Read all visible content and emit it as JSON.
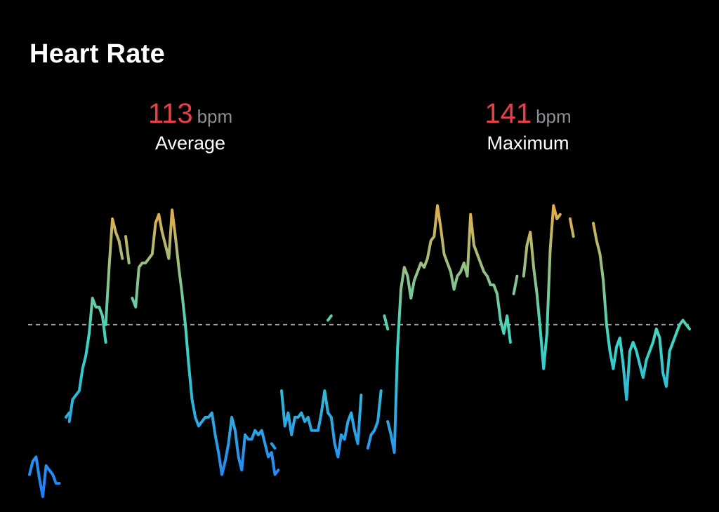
{
  "title": "Heart Rate",
  "colors": {
    "background": "#000000",
    "stat_value": "#e8404a",
    "stat_unit": "#8e8e93",
    "gradient_high": "#ffa637",
    "gradient_mid": "#39d7c5",
    "gradient_low": "#1f7cff",
    "average_line": "#a0a0a0"
  },
  "stats": {
    "average": {
      "value": "113",
      "unit": "bpm",
      "label": "Average"
    },
    "maximum": {
      "value": "141",
      "unit": "bpm",
      "label": "Maximum"
    }
  },
  "chart_data": {
    "type": "line",
    "ylim": [
      74,
      144
    ],
    "average": 113,
    "x_count": 200,
    "series": [
      {
        "segments": [
          [
            [
              0,
              79
            ],
            [
              1,
              82
            ],
            [
              2,
              83
            ],
            [
              3,
              78
            ],
            [
              4,
              74
            ],
            [
              5,
              81
            ],
            [
              6,
              80
            ],
            [
              7,
              79
            ],
            [
              8,
              77
            ],
            [
              9,
              77
            ]
          ],
          [
            [
              11,
              92
            ],
            [
              12,
              93
            ]
          ],
          [
            [
              12,
              91
            ],
            [
              13,
              96
            ],
            [
              14,
              97
            ],
            [
              15,
              98
            ],
            [
              16,
              103
            ],
            [
              17,
              106
            ],
            [
              18,
              111
            ],
            [
              19,
              119
            ],
            [
              20,
              117
            ],
            [
              21,
              117
            ],
            [
              22,
              115
            ],
            [
              23,
              109
            ]
          ],
          [
            [
              23,
              113
            ],
            [
              24,
              126
            ],
            [
              25,
              137
            ],
            [
              26,
              134
            ],
            [
              27,
              132
            ],
            [
              28,
              128
            ]
          ],
          [
            [
              29,
              133
            ],
            [
              30,
              127
            ]
          ],
          [
            [
              31,
              119
            ],
            [
              32,
              117
            ],
            [
              33,
              126
            ],
            [
              34,
              127
            ],
            [
              35,
              127
            ],
            [
              36,
              128
            ],
            [
              37,
              129
            ],
            [
              38,
              136
            ],
            [
              39,
              138
            ],
            [
              40,
              134
            ],
            [
              41,
              131
            ],
            [
              42,
              128
            ],
            [
              43,
              139
            ],
            [
              44,
              133
            ],
            [
              45,
              126
            ],
            [
              46,
              120
            ],
            [
              47,
              113
            ],
            [
              48,
              104
            ],
            [
              49,
              96
            ],
            [
              50,
              92
            ],
            [
              51,
              90
            ],
            [
              52,
              91
            ],
            [
              53,
              92
            ],
            [
              54,
              92
            ],
            [
              55,
              93
            ],
            [
              56,
              88
            ],
            [
              57,
              84
            ],
            [
              58,
              79
            ],
            [
              59,
              82
            ],
            [
              60,
              86
            ],
            [
              61,
              92
            ],
            [
              62,
              89
            ],
            [
              63,
              83
            ],
            [
              64,
              80
            ],
            [
              65,
              88
            ],
            [
              66,
              87
            ],
            [
              67,
              87
            ],
            [
              68,
              89
            ],
            [
              69,
              88
            ],
            [
              70,
              89
            ],
            [
              71,
              86
            ],
            [
              72,
              83
            ],
            [
              73,
              84
            ],
            [
              74,
              79
            ],
            [
              75,
              80
            ]
          ],
          [
            [
              73,
              86
            ],
            [
              74,
              85
            ]
          ],
          [
            [
              76,
              98
            ],
            [
              77,
              90
            ],
            [
              78,
              93
            ],
            [
              79,
              88
            ],
            [
              80,
              92
            ],
            [
              81,
              92
            ],
            [
              82,
              93
            ],
            [
              83,
              91
            ],
            [
              84,
              92
            ],
            [
              85,
              89
            ],
            [
              86,
              89
            ],
            [
              87,
              89
            ],
            [
              88,
              93
            ],
            [
              89,
              98
            ],
            [
              90,
              93
            ],
            [
              91,
              92
            ],
            [
              92,
              86
            ],
            [
              93,
              83
            ],
            [
              94,
              88
            ],
            [
              95,
              87
            ],
            [
              96,
              91
            ],
            [
              97,
              93
            ],
            [
              98,
              89
            ],
            [
              99,
              86
            ],
            [
              100,
              97
            ]
          ],
          [
            [
              90,
              114
            ],
            [
              91,
              115
            ]
          ],
          [
            [
              102,
              85
            ],
            [
              103,
              88
            ],
            [
              104,
              89
            ],
            [
              105,
              91
            ],
            [
              106,
              98
            ]
          ],
          [
            [
              107,
              115
            ],
            [
              108,
              112
            ]
          ],
          [
            [
              108,
              91
            ],
            [
              109,
              88
            ],
            [
              110,
              84
            ],
            [
              111,
              108
            ],
            [
              112,
              121
            ],
            [
              113,
              126
            ],
            [
              114,
              124
            ],
            [
              115,
              119
            ],
            [
              116,
              123
            ],
            [
              117,
              125
            ],
            [
              118,
              127
            ],
            [
              119,
              126
            ],
            [
              120,
              128
            ],
            [
              121,
              132
            ],
            [
              122,
              133
            ],
            [
              123,
              140
            ],
            [
              124,
              135
            ],
            [
              125,
              129
            ],
            [
              126,
              127
            ],
            [
              127,
              125
            ],
            [
              128,
              121
            ],
            [
              129,
              124
            ],
            [
              130,
              125
            ],
            [
              131,
              127
            ],
            [
              132,
              124
            ],
            [
              133,
              138
            ],
            [
              134,
              131
            ],
            [
              135,
              129
            ],
            [
              136,
              127
            ],
            [
              137,
              125
            ],
            [
              138,
              124
            ],
            [
              139,
              122
            ],
            [
              140,
              122
            ],
            [
              141,
              120
            ],
            [
              142,
              114
            ],
            [
              143,
              111
            ],
            [
              144,
              115
            ],
            [
              145,
              109
            ]
          ],
          [
            [
              146,
              120
            ],
            [
              147,
              124
            ]
          ],
          [
            [
              149,
              124
            ],
            [
              150,
              131
            ],
            [
              151,
              134
            ],
            [
              152,
              126
            ],
            [
              153,
              120
            ],
            [
              154,
              112
            ],
            [
              155,
              103
            ],
            [
              156,
              111
            ],
            [
              157,
              130
            ],
            [
              158,
              140
            ],
            [
              159,
              137
            ],
            [
              160,
              138
            ]
          ],
          [
            [
              163,
              137
            ],
            [
              164,
              133
            ]
          ],
          [
            [
              170,
              136
            ],
            [
              171,
              132
            ],
            [
              172,
              129
            ],
            [
              173,
              123
            ],
            [
              174,
              113
            ],
            [
              175,
              107
            ],
            [
              176,
              103
            ],
            [
              177,
              108
            ],
            [
              178,
              110
            ],
            [
              179,
              104
            ],
            [
              180,
              96
            ],
            [
              181,
              107
            ],
            [
              182,
              109
            ],
            [
              183,
              107
            ],
            [
              184,
              104
            ],
            [
              185,
              101
            ],
            [
              186,
              105
            ],
            [
              187,
              107
            ],
            [
              188,
              109
            ],
            [
              189,
              112
            ],
            [
              190,
              110
            ],
            [
              191,
              102
            ],
            [
              192,
              99
            ],
            [
              193,
              107
            ],
            [
              194,
              109
            ],
            [
              195,
              111
            ],
            [
              196,
              113
            ],
            [
              197,
              114
            ],
            [
              198,
              113
            ],
            [
              199,
              112
            ]
          ]
        ]
      }
    ]
  }
}
